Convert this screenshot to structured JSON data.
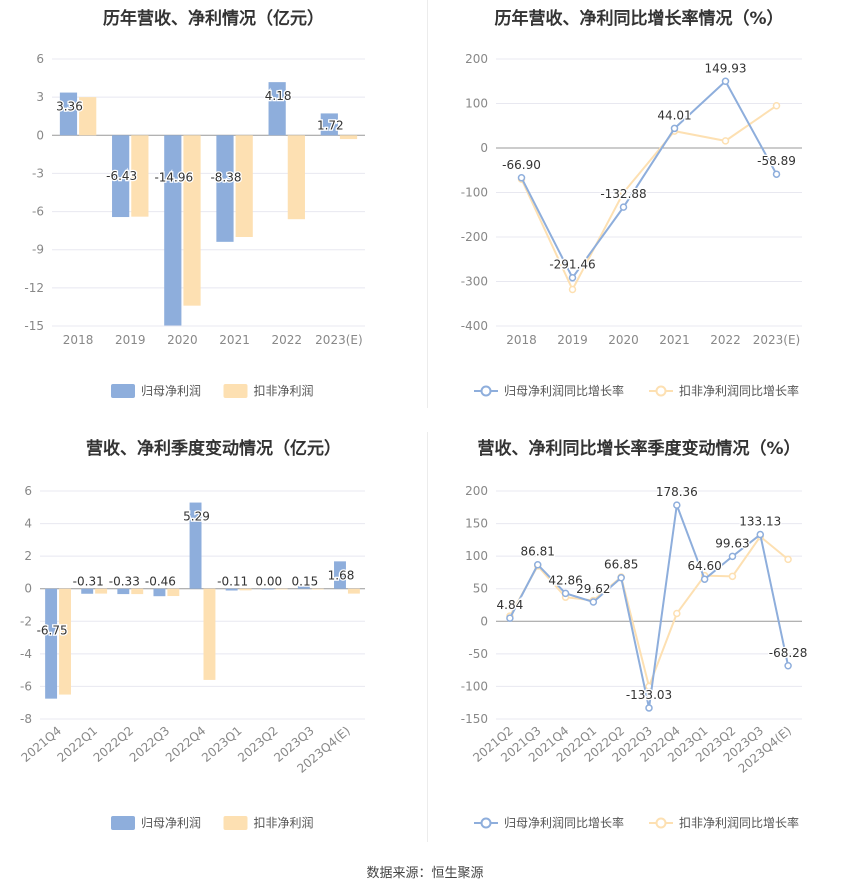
{
  "footer": "数据来源：恒生聚源",
  "colors": {
    "series_a": "#8eaedc",
    "series_b": "#fde0b2",
    "line_a": "#8eaedc",
    "line_b": "#fde0b2",
    "grid": "#e8e8f0",
    "axis_text": "#888888"
  },
  "chart_data": [
    {
      "id": "c1",
      "type": "bar",
      "title": "历年营收、净利情况（亿元）",
      "categories": [
        "2018",
        "2019",
        "2020",
        "2021",
        "2022",
        "2023(E)"
      ],
      "series": [
        {
          "name": "归母净利润",
          "values": [
            3.36,
            -6.43,
            -14.96,
            -8.38,
            4.18,
            1.72
          ],
          "labels": [
            "3.36",
            "-6.43",
            "-14.96",
            "-8.38",
            "4.18",
            "1.72"
          ]
        },
        {
          "name": "扣非净利润",
          "values": [
            3.0,
            -6.4,
            -13.4,
            -8.0,
            -6.6,
            -0.3
          ]
        }
      ],
      "ylim": [
        -15,
        6
      ],
      "yticks": [
        6,
        3,
        0,
        -3,
        -6,
        -9,
        -12,
        -15
      ],
      "ytick_labels": [
        "6",
        "3",
        "0",
        "-3",
        "-6",
        "-9",
        "-12",
        "-15"
      ],
      "legend": "bottom"
    },
    {
      "id": "c2",
      "type": "line",
      "title": "历年营收、净利同比增长率情况（%）",
      "categories": [
        "2018",
        "2019",
        "2020",
        "2021",
        "2022",
        "2023(E)"
      ],
      "series": [
        {
          "name": "归母净利润同比增长率",
          "values": [
            -66.9,
            -291.46,
            -132.88,
            44.01,
            149.93,
            -58.89
          ],
          "labels": [
            "-66.90",
            "-291.46",
            "-132.88",
            "44.01",
            "149.93",
            "-58.89"
          ]
        },
        {
          "name": "扣非净利润同比增长率",
          "values": [
            -70,
            -318,
            -100,
            38,
            16,
            95
          ]
        }
      ],
      "ylim": [
        -400,
        200
      ],
      "yticks": [
        200,
        100,
        0,
        -100,
        -200,
        -300,
        -400
      ],
      "ytick_labels": [
        "200",
        "100",
        "0",
        "-100",
        "-200",
        "-300",
        "-400"
      ],
      "legend": "bottom"
    },
    {
      "id": "c3",
      "type": "bar",
      "title": "营收、净利季度变动情况（亿元）",
      "categories": [
        "2021Q4",
        "2022Q1",
        "2022Q2",
        "2022Q3",
        "2022Q4",
        "2023Q1",
        "2023Q2",
        "2023Q3",
        "2023Q4(E)"
      ],
      "series": [
        {
          "name": "归母净利润",
          "values": [
            -6.75,
            -0.31,
            -0.33,
            -0.46,
            5.29,
            -0.11,
            0.0,
            0.15,
            1.68
          ],
          "labels": [
            "-6.75",
            "-0.31",
            "-0.33",
            "-0.46",
            "5.29",
            "-0.11",
            "0.00",
            "0.15",
            "1.68"
          ]
        },
        {
          "name": "扣非净利润",
          "values": [
            -6.5,
            -0.3,
            -0.33,
            -0.45,
            -5.6,
            -0.1,
            0.0,
            -0.05,
            -0.3
          ]
        }
      ],
      "ylim": [
        -8,
        6
      ],
      "yticks": [
        6,
        4,
        2,
        0,
        -2,
        -4,
        -6,
        -8
      ],
      "ytick_labels": [
        "6",
        "4",
        "2",
        "0",
        "-2",
        "-4",
        "-6",
        "-8"
      ],
      "legend": "bottom"
    },
    {
      "id": "c4",
      "type": "line",
      "title": "营收、净利同比增长率季度变动情况（%）",
      "categories": [
        "2021Q2",
        "2021Q3",
        "2021Q4",
        "2022Q1",
        "2022Q2",
        "2022Q3",
        "2022Q4",
        "2023Q1",
        "2023Q2",
        "2023Q3",
        "2023Q4(E)"
      ],
      "series": [
        {
          "name": "归母净利润同比增长率",
          "values": [
            4.84,
            86.81,
            42.86,
            29.62,
            66.85,
            -133.03,
            178.36,
            64.6,
            99.63,
            133.13,
            -68.28
          ],
          "labels": [
            "4.84",
            "86.81",
            "42.86",
            "29.62",
            "66.85",
            "-133.03",
            "178.36",
            "64.60",
            "99.63",
            "133.13",
            "-68.28"
          ]
        },
        {
          "name": "扣非净利润同比增长率",
          "values": [
            8,
            85,
            37,
            32,
            68,
            -100,
            12,
            70,
            69,
            130,
            95
          ]
        }
      ],
      "ylim": [
        -150,
        200
      ],
      "yticks": [
        200,
        150,
        100,
        50,
        0,
        -50,
        -100,
        -150
      ],
      "ytick_labels": [
        "200",
        "150",
        "100",
        "50",
        "0",
        "-50",
        "-100",
        "-150"
      ],
      "legend": "bottom"
    }
  ]
}
